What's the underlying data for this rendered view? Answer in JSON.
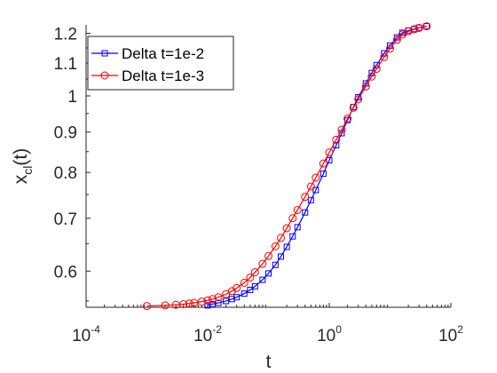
{
  "chart_data": {
    "type": "line",
    "title": "",
    "xlabel": "t",
    "ylabel_main": "x",
    "ylabel_sub": "cl",
    "ylabel_suffix": "(t)",
    "xscale": "log",
    "yscale": "log",
    "xlim": [
      0.0001,
      100
    ],
    "ylim": [
      0.54,
      1.23
    ],
    "x_ticks": [
      {
        "value": 0.0001,
        "base": "10",
        "exp": "-4"
      },
      {
        "value": 0.01,
        "base": "10",
        "exp": "-2"
      },
      {
        "value": 1,
        "base": "10",
        "exp": "0"
      },
      {
        "value": 100,
        "base": "10",
        "exp": "2"
      }
    ],
    "y_ticks": [
      {
        "value": 0.6,
        "label": "0.6"
      },
      {
        "value": 0.7,
        "label": "0.7"
      },
      {
        "value": 0.8,
        "label": "0.8"
      },
      {
        "value": 0.9,
        "label": "0.9"
      },
      {
        "value": 1.0,
        "label": "1"
      },
      {
        "value": 1.1,
        "label": "1.1"
      },
      {
        "value": 1.2,
        "label": "1.2"
      }
    ],
    "grid": false,
    "legend_position": "top-left",
    "series": [
      {
        "name": "Delta t=1e-2",
        "color": "#0000ff",
        "marker": "square",
        "x": [
          0.01,
          0.012,
          0.015,
          0.02,
          0.025,
          0.03,
          0.04,
          0.05,
          0.06,
          0.08,
          0.1,
          0.13,
          0.16,
          0.2,
          0.25,
          0.3,
          0.4,
          0.5,
          0.6,
          0.8,
          1,
          1.3,
          1.6,
          2,
          2.5,
          3,
          4,
          5,
          6,
          8,
          10,
          13,
          16,
          20,
          25,
          30,
          40
        ],
        "y": [
          0.543,
          0.545,
          0.547,
          0.55,
          0.553,
          0.556,
          0.562,
          0.568,
          0.574,
          0.585,
          0.596,
          0.611,
          0.626,
          0.644,
          0.664,
          0.682,
          0.712,
          0.738,
          0.76,
          0.797,
          0.829,
          0.866,
          0.897,
          0.932,
          0.968,
          0.996,
          1.037,
          1.069,
          1.094,
          1.132,
          1.158,
          1.186,
          1.202,
          1.21,
          1.215,
          1.22,
          1.225
        ]
      },
      {
        "name": "Delta t=1e-3",
        "color": "#ff0000",
        "marker": "circle",
        "x": [
          0.001,
          0.002,
          0.003,
          0.004,
          0.005,
          0.006,
          0.008,
          0.01,
          0.012,
          0.015,
          0.02,
          0.025,
          0.03,
          0.04,
          0.05,
          0.06,
          0.08,
          0.1,
          0.13,
          0.16,
          0.2,
          0.25,
          0.3,
          0.4,
          0.5,
          0.6,
          0.8,
          1,
          1.3,
          1.6,
          2,
          2.5,
          3,
          4,
          5,
          6,
          8,
          10,
          13,
          16,
          20,
          25,
          30,
          40
        ],
        "y": [
          0.542,
          0.543,
          0.544,
          0.545,
          0.546,
          0.547,
          0.549,
          0.551,
          0.553,
          0.556,
          0.561,
          0.566,
          0.571,
          0.58,
          0.589,
          0.598,
          0.613,
          0.627,
          0.645,
          0.661,
          0.68,
          0.7,
          0.717,
          0.745,
          0.768,
          0.788,
          0.821,
          0.848,
          0.88,
          0.906,
          0.936,
          0.966,
          0.99,
          1.028,
          1.058,
          1.082,
          1.12,
          1.148,
          1.178,
          1.196,
          1.207,
          1.214,
          1.219,
          1.225
        ]
      }
    ]
  }
}
